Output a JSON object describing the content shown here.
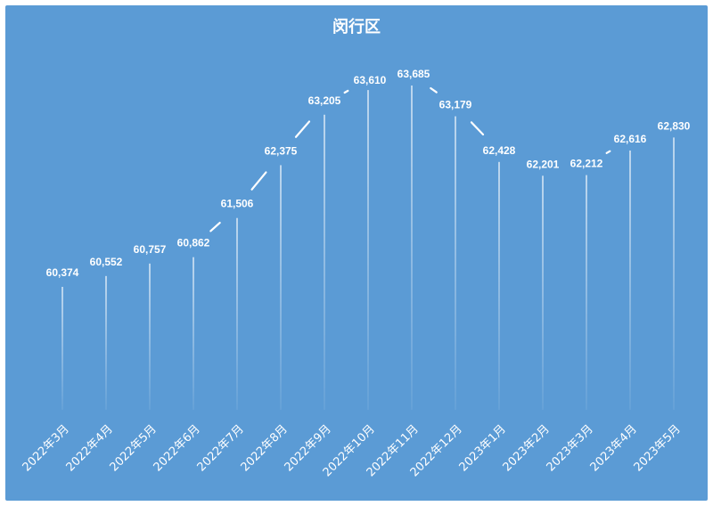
{
  "chart_data": {
    "type": "line",
    "title": "闵行区",
    "xlabel": "",
    "ylabel": "",
    "categories": [
      "2022年3月",
      "2022年4月",
      "2022年5月",
      "2022年6月",
      "2022年7月",
      "2022年8月",
      "2022年9月",
      "2022年10月",
      "2022年11月",
      "2022年12月",
      "2023年1月",
      "2023年2月",
      "2023年3月",
      "2023年4月",
      "2023年5月"
    ],
    "series": [
      {
        "values": [
          60374,
          60552,
          60757,
          60862,
          61506,
          62375,
          63205,
          63610,
          63685,
          63179,
          62428,
          62201,
          62212,
          62616,
          62830
        ]
      }
    ],
    "data_labels": [
      "60,374",
      "60,552",
      "60,757",
      "60,862",
      "61,506",
      "62,375",
      "63,205",
      "63,610",
      "63,685",
      "63,179",
      "62,428",
      "62,201",
      "62,212",
      "62,616",
      "62,830"
    ],
    "grid": false,
    "legend": "none",
    "drop_lines": true,
    "colors": {
      "background": "#5b9bd5",
      "line": "#ffffff",
      "text": "#ffffff"
    }
  }
}
